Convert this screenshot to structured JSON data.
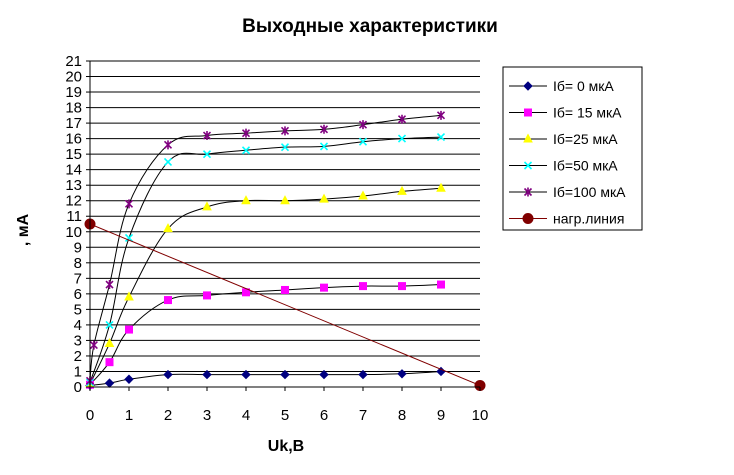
{
  "chart_data": {
    "type": "line",
    "title": "Выходные характеристики",
    "xlabel": "Uk,B",
    "ylabel": ", мА",
    "xlim": [
      0,
      10
    ],
    "ylim": [
      0,
      21
    ],
    "x_ticks": [
      0,
      1,
      2,
      3,
      4,
      5,
      6,
      7,
      8,
      9,
      10
    ],
    "y_ticks": [
      0,
      1,
      2,
      3,
      4,
      5,
      6,
      7,
      8,
      9,
      10,
      11,
      12,
      13,
      14,
      15,
      16,
      17,
      18,
      19,
      20,
      21
    ],
    "grid": "horizontal",
    "legend_position": "right",
    "series": [
      {
        "name": "Iб= 0 мкА",
        "color": "#000080",
        "marker": "diamond",
        "points": [
          [
            0,
            0.1
          ],
          [
            0.5,
            0.25
          ],
          [
            1,
            0.5
          ],
          [
            2,
            0.8
          ],
          [
            3,
            0.8
          ],
          [
            4,
            0.8
          ],
          [
            5,
            0.8
          ],
          [
            6,
            0.8
          ],
          [
            7,
            0.8
          ],
          [
            8,
            0.85
          ],
          [
            9,
            1.0
          ]
        ]
      },
      {
        "name": "Iб= 15 мкА",
        "color": "#ff00ff",
        "marker": "square",
        "points": [
          [
            0,
            0.15
          ],
          [
            0.5,
            1.6
          ],
          [
            1,
            3.7
          ],
          [
            2,
            5.6
          ],
          [
            3,
            5.9
          ],
          [
            4,
            6.1
          ],
          [
            5,
            6.25
          ],
          [
            6,
            6.4
          ],
          [
            7,
            6.5
          ],
          [
            8,
            6.5
          ],
          [
            9,
            6.6
          ]
        ]
      },
      {
        "name": "Iб=25 мкА",
        "color": "#ffff00",
        "marker": "triangle",
        "points": [
          [
            0,
            0.2
          ],
          [
            0.5,
            2.8
          ],
          [
            1,
            5.8
          ],
          [
            2,
            10.2
          ],
          [
            3,
            11.6
          ],
          [
            4,
            12.0
          ],
          [
            5,
            12.0
          ],
          [
            6,
            12.1
          ],
          [
            7,
            12.3
          ],
          [
            8,
            12.6
          ],
          [
            9,
            12.8
          ]
        ]
      },
      {
        "name": "Iб=50 мкА",
        "color": "#00ffff",
        "marker": "x",
        "points": [
          [
            0,
            0.3
          ],
          [
            0.5,
            4.0
          ],
          [
            1,
            9.6
          ],
          [
            2,
            14.5
          ],
          [
            3,
            15.0
          ],
          [
            4,
            15.25
          ],
          [
            5,
            15.45
          ],
          [
            6,
            15.5
          ],
          [
            7,
            15.8
          ],
          [
            8,
            16.0
          ],
          [
            9,
            16.1
          ]
        ]
      },
      {
        "name": "Iб=100 мкА",
        "color": "#800080",
        "marker": "star",
        "points": [
          [
            0,
            0.4
          ],
          [
            0.1,
            2.7
          ],
          [
            0.5,
            6.6
          ],
          [
            1,
            11.8
          ],
          [
            2,
            15.6
          ],
          [
            3,
            16.2
          ],
          [
            4,
            16.35
          ],
          [
            5,
            16.5
          ],
          [
            6,
            16.6
          ],
          [
            7,
            16.9
          ],
          [
            8,
            17.25
          ],
          [
            9,
            17.5
          ]
        ]
      },
      {
        "name": "нагр.линия",
        "color": "#800000",
        "marker": "circle",
        "points": [
          [
            0,
            10.5
          ],
          [
            10,
            0.1
          ]
        ]
      }
    ]
  }
}
